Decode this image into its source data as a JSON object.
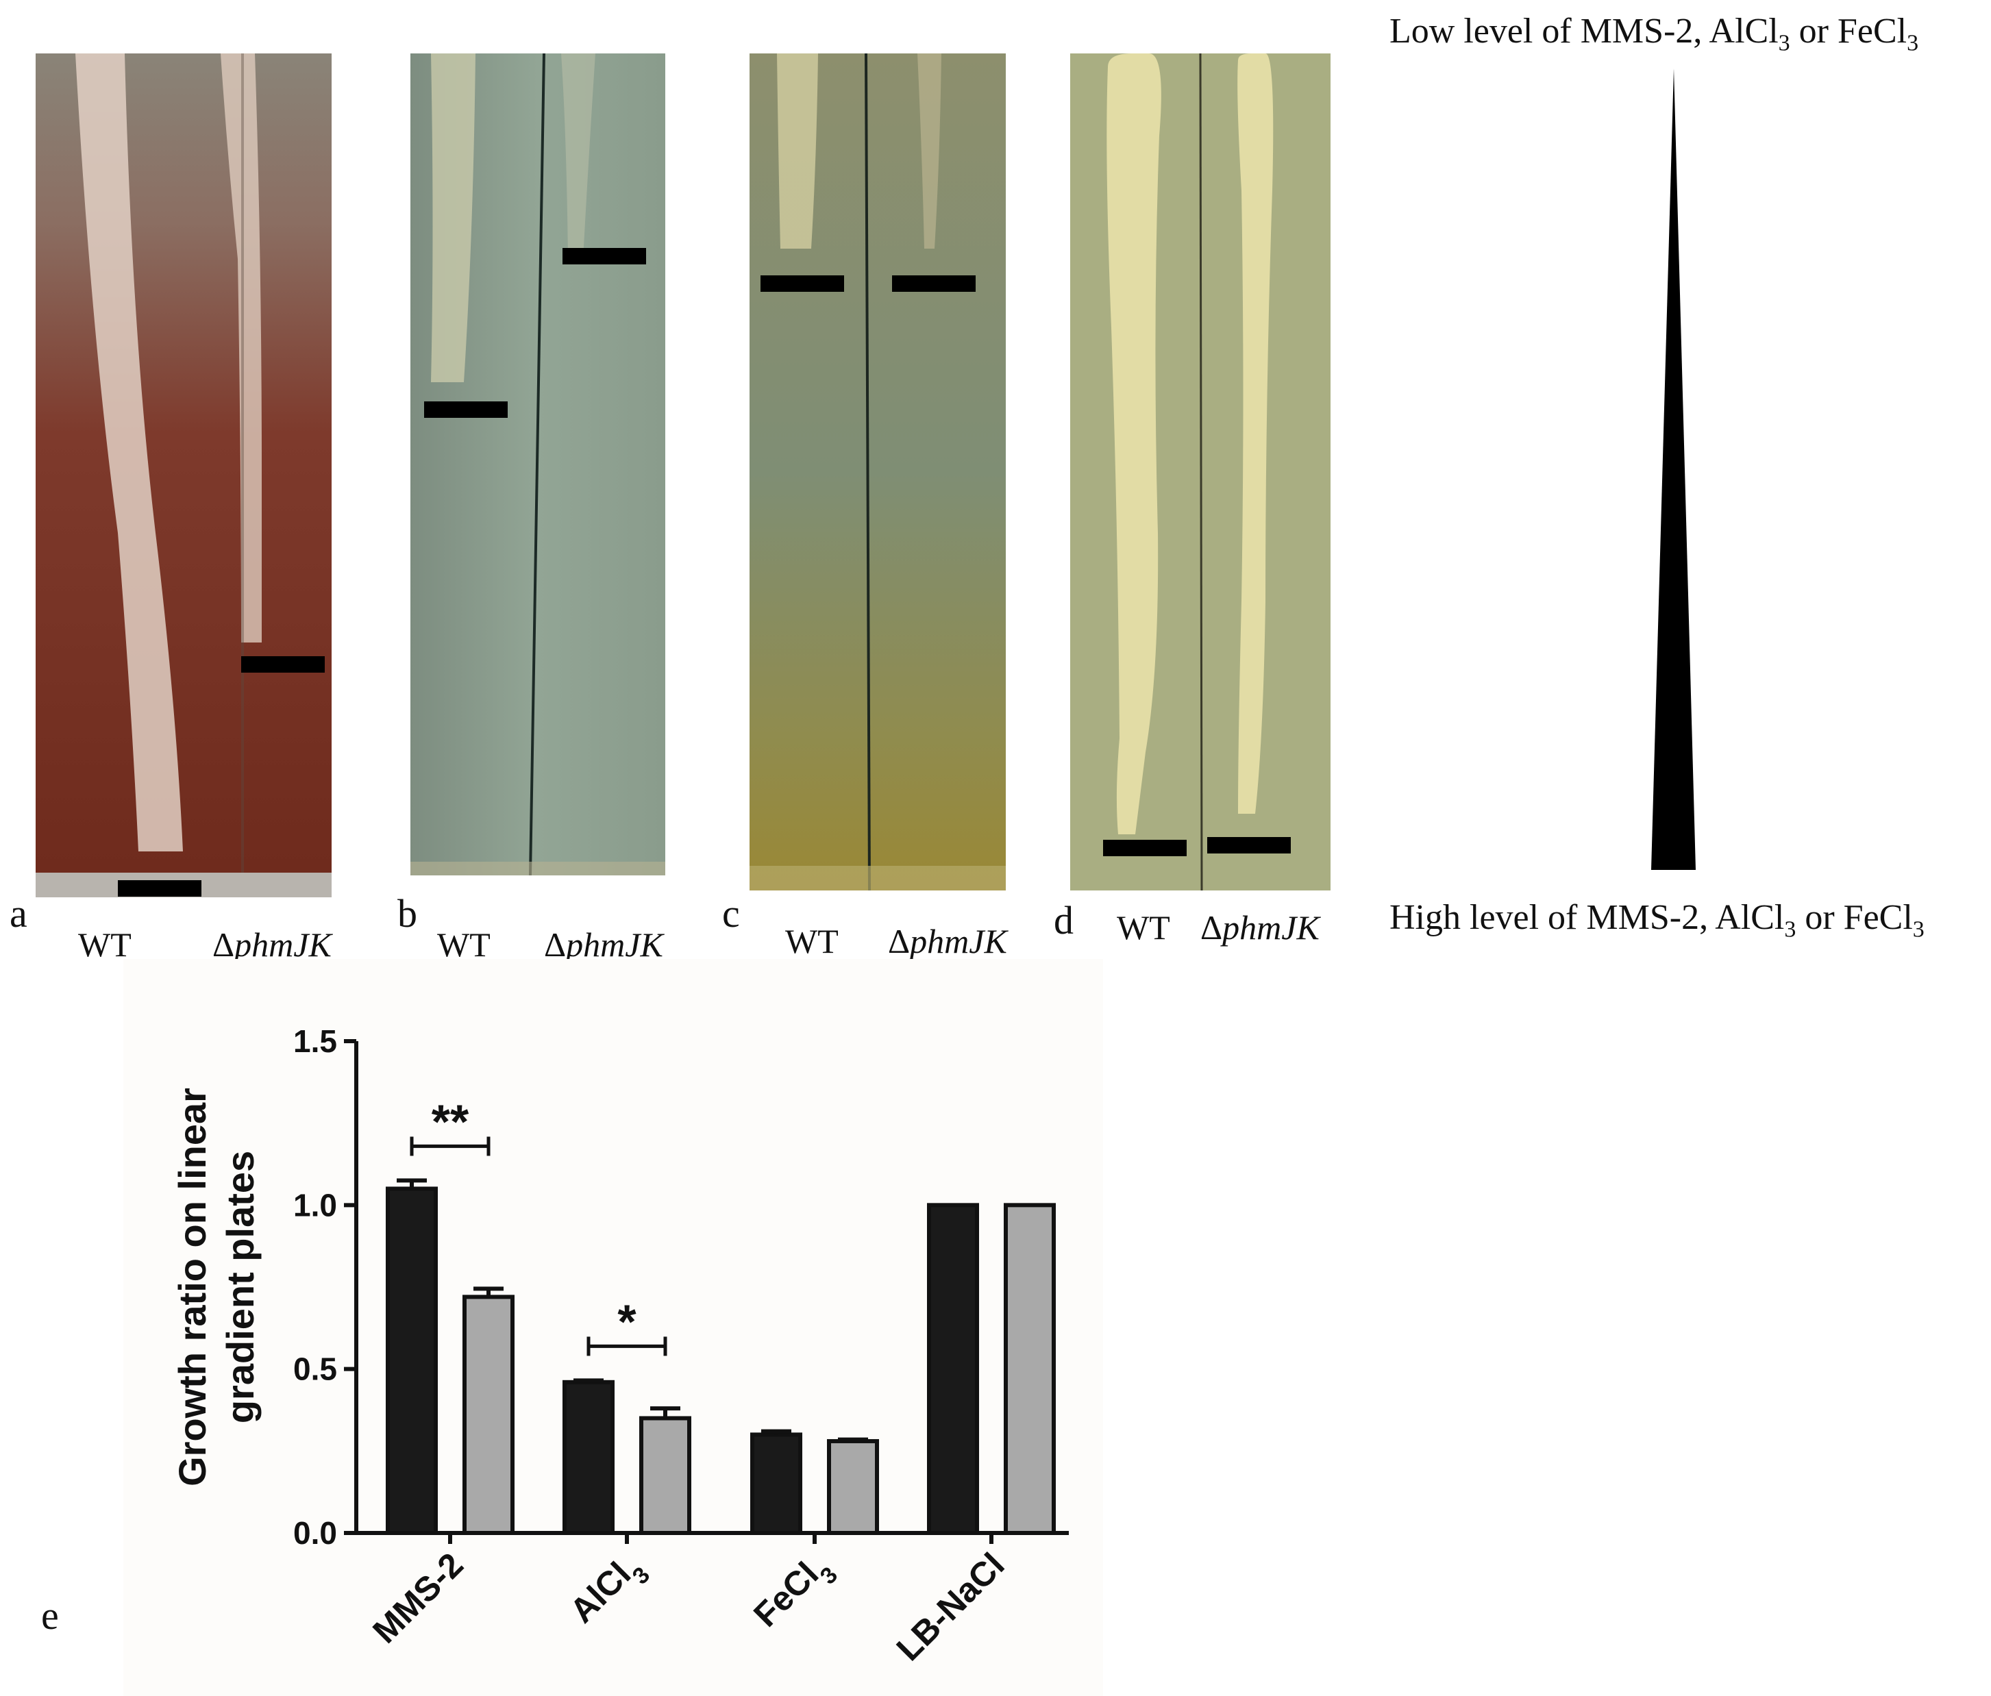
{
  "panels": [
    {
      "letter": "a",
      "wt_label": "WT",
      "mutant_label": "phmJK",
      "mutant_prefix": "Δ"
    },
    {
      "letter": "b",
      "wt_label": "WT",
      "mutant_label": "phmJK",
      "mutant_prefix": "Δ"
    },
    {
      "letter": "c",
      "wt_label": "WT",
      "mutant_label": "phmJK",
      "mutant_prefix": "Δ"
    },
    {
      "letter": "d",
      "wt_label": "WT",
      "mutant_label": "phmJK",
      "mutant_prefix": "Δ"
    }
  ],
  "gradient": {
    "top_text": "Low level of MMS-2, AlCl",
    "bottom_text": "High level of MMS-2, AlCl",
    "sub": "3",
    "suffix_mid": " or FeCl",
    "colors": {
      "triangle": "#000000"
    }
  },
  "chart_panel_letter": "e",
  "chart_data": {
    "type": "bar",
    "categories": [
      "MMS-2",
      "AlCl3",
      "FeCl3",
      "LB-NaCl"
    ],
    "category_display": [
      {
        "main": "MMS-2",
        "sub": ""
      },
      {
        "main": "AlCl",
        "sub": "3"
      },
      {
        "main": "FeCl",
        "sub": "3"
      },
      {
        "main": "LB-NaCl",
        "sub": ""
      }
    ],
    "series": [
      {
        "values": [
          1.05,
          0.46,
          0.3,
          1.0
        ],
        "errors": [
          0.025,
          0.005,
          0.01,
          0.0
        ],
        "color": "#1a1a1a"
      },
      {
        "values": [
          0.72,
          0.35,
          0.28,
          1.0
        ],
        "errors": [
          0.025,
          0.03,
          0.005,
          0.0
        ],
        "color": "#a9a9a9"
      }
    ],
    "ylabel_line1": "Growth ratio on linear",
    "ylabel_line2": "gradient plates",
    "ylim": [
      0,
      1.5
    ],
    "yticks": [
      "0.0",
      "0.5",
      "1.0",
      "1.5"
    ],
    "significance": [
      {
        "category_index": 0,
        "label": "**"
      },
      {
        "category_index": 1,
        "label": "*"
      }
    ]
  }
}
